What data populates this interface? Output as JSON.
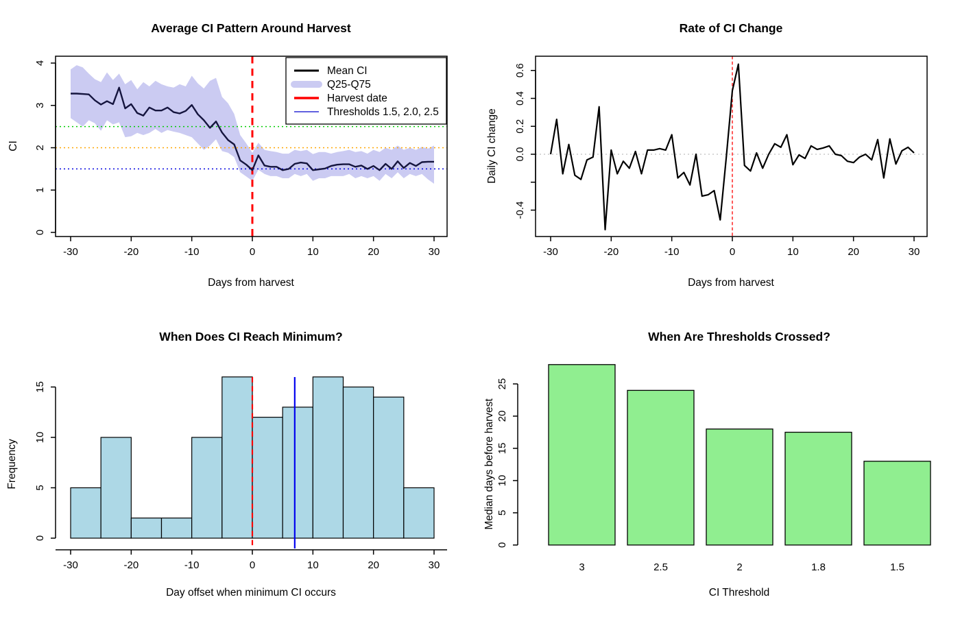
{
  "figure": {
    "background": "#FFFFFF",
    "rows": 2,
    "cols": 2
  },
  "colors": {
    "mean_line": "#15153E",
    "band": "#CBCBF2",
    "harvest_red": "#FF0000",
    "threshold_green": "#00CC00",
    "threshold_orange": "#FFA500",
    "threshold_blue": "#0000E0",
    "zero_gray": "#BFBFBF",
    "hist_fill": "#ADD8E6",
    "bar_fill": "#90EE90",
    "black": "#000000",
    "legend_blue": "#0000CC",
    "min_marker_blue": "#0000EE"
  },
  "chart_data": [
    {
      "id": "avg-ci-pattern",
      "type": "line",
      "title": "Average CI Pattern Around Harvest",
      "xlabel": "Days from harvest",
      "ylabel": "CI",
      "xlim": [
        -30,
        30
      ],
      "ylim": [
        0,
        4
      ],
      "xticks": [
        -30,
        -20,
        -10,
        0,
        10,
        20,
        30
      ],
      "yticks": [
        0,
        1,
        2,
        3,
        4
      ],
      "grid": false,
      "boxed": true,
      "x": [
        -30,
        -29,
        -28,
        -27,
        -26,
        -25,
        -24,
        -23,
        -22,
        -21,
        -20,
        -19,
        -18,
        -17,
        -16,
        -15,
        -14,
        -13,
        -12,
        -11,
        -10,
        -9,
        -8,
        -7,
        -6,
        -5,
        -4,
        -3,
        -2,
        -1,
        0,
        1,
        2,
        3,
        4,
        5,
        6,
        7,
        8,
        9,
        10,
        11,
        12,
        13,
        14,
        15,
        16,
        17,
        18,
        19,
        20,
        21,
        22,
        23,
        24,
        25,
        26,
        27,
        28,
        29,
        30
      ],
      "series": [
        {
          "name": "Mean CI",
          "color": "#15153E",
          "width": 2.4,
          "values": [
            3.28,
            3.28,
            3.27,
            3.26,
            3.12,
            3.02,
            3.1,
            3.03,
            3.42,
            2.93,
            3.03,
            2.82,
            2.76,
            2.95,
            2.88,
            2.88,
            2.95,
            2.84,
            2.81,
            2.87,
            3.01,
            2.79,
            2.65,
            2.47,
            2.62,
            2.36,
            2.18,
            2.08,
            1.7,
            1.6,
            1.47,
            1.82,
            1.58,
            1.55,
            1.55,
            1.47,
            1.5,
            1.62,
            1.65,
            1.63,
            1.47,
            1.49,
            1.51,
            1.57,
            1.6,
            1.61,
            1.61,
            1.55,
            1.58,
            1.5,
            1.57,
            1.47,
            1.62,
            1.5,
            1.68,
            1.52,
            1.64,
            1.57,
            1.66,
            1.67,
            1.67
          ]
        }
      ],
      "band": {
        "name": "Q25-Q75",
        "color": "#CBCBF2",
        "upper": [
          3.85,
          3.95,
          3.9,
          3.75,
          3.62,
          3.55,
          3.78,
          3.6,
          3.75,
          3.5,
          3.6,
          3.38,
          3.55,
          3.45,
          3.58,
          3.5,
          3.45,
          3.42,
          3.5,
          3.45,
          3.7,
          3.52,
          3.4,
          3.58,
          3.65,
          3.2,
          3.05,
          2.8,
          2.3,
          2.1,
          1.88,
          2.12,
          1.95,
          1.92,
          1.9,
          1.86,
          1.86,
          1.95,
          1.92,
          1.95,
          1.85,
          1.9,
          1.9,
          1.86,
          1.9,
          1.92,
          1.95,
          1.9,
          1.92,
          1.86,
          1.95,
          1.9,
          2.0,
          1.95,
          2.05,
          1.95,
          2.0,
          1.95,
          2.02,
          1.98,
          2.05
        ],
        "lower": [
          2.7,
          2.6,
          2.5,
          2.65,
          2.58,
          2.4,
          2.65,
          2.55,
          2.6,
          2.25,
          2.27,
          2.35,
          2.3,
          2.35,
          2.44,
          2.35,
          2.42,
          2.38,
          2.35,
          2.3,
          2.25,
          2.1,
          1.95,
          2.05,
          2.2,
          1.92,
          1.88,
          1.78,
          1.42,
          1.32,
          1.22,
          1.48,
          1.38,
          1.33,
          1.33,
          1.28,
          1.28,
          1.38,
          1.33,
          1.38,
          1.22,
          1.28,
          1.28,
          1.33,
          1.33,
          1.33,
          1.38,
          1.28,
          1.33,
          1.28,
          1.33,
          1.22,
          1.38,
          1.28,
          1.42,
          1.28,
          1.38,
          1.33,
          1.38,
          1.25,
          1.15
        ]
      },
      "vlines": [
        {
          "x": 0,
          "color": "#FF0000",
          "style": "dashed",
          "width": 3,
          "label": "Harvest date"
        }
      ],
      "hlines": [
        {
          "y": 2.5,
          "color": "#00CC00",
          "style": "dotted",
          "width": 1.5,
          "label": "Threshold 2.5"
        },
        {
          "y": 2.0,
          "color": "#FFA500",
          "style": "dotted",
          "width": 1.5,
          "label": "Threshold 2.0"
        },
        {
          "y": 1.5,
          "color": "#0000E0",
          "style": "dotted",
          "width": 1.5,
          "label": "Threshold 1.5"
        }
      ],
      "legend": {
        "position": "topright",
        "entries": [
          {
            "label": "Mean CI",
            "color": "#000000",
            "lw": 3
          },
          {
            "label": "Q25-Q75",
            "color": "#CBCBF2",
            "lw": 10
          },
          {
            "label": "Harvest date",
            "color": "#FF0000",
            "lw": 3.5
          },
          {
            "label": "Thresholds 1.5, 2.0, 2.5",
            "color": "#0000CC",
            "lw": 1.2
          }
        ]
      }
    },
    {
      "id": "rate-of-ci-change",
      "type": "line",
      "title": "Rate of CI Change",
      "xlabel": "Days from harvest",
      "ylabel": "Daily CI change",
      "xlim": [
        -30,
        30
      ],
      "ylim": [
        -0.57,
        0.66
      ],
      "xticks": [
        -30,
        -20,
        -10,
        0,
        10,
        20,
        30
      ],
      "yticks": [
        {
          "v": 0.6,
          "label": "0.6"
        },
        {
          "v": 0.4,
          "label": "0.4"
        },
        {
          "v": 0.2,
          "label": "0.2"
        },
        {
          "v": 0.0,
          "label": "0.0"
        },
        {
          "v": -0.2,
          "label": ""
        },
        {
          "v": -0.4,
          "label": "-0.4"
        }
      ],
      "grid": false,
      "boxed": true,
      "x": [
        -30,
        -29,
        -28,
        -27,
        -26,
        -25,
        -24,
        -23,
        -22,
        -21,
        -20,
        -19,
        -18,
        -17,
        -16,
        -15,
        -14,
        -13,
        -12,
        -11,
        -10,
        -9,
        -8,
        -7,
        -6,
        -5,
        -4,
        -3,
        -2,
        -1,
        0,
        1,
        2,
        3,
        4,
        5,
        6,
        7,
        8,
        9,
        10,
        11,
        12,
        13,
        14,
        15,
        16,
        17,
        18,
        19,
        20,
        21,
        22,
        23,
        24,
        25,
        26,
        27,
        28,
        29,
        30
      ],
      "series": [
        {
          "name": "Daily CI change",
          "color": "#000000",
          "width": 2.2,
          "values": [
            0.0,
            0.25,
            -0.14,
            0.07,
            -0.15,
            -0.18,
            -0.04,
            -0.02,
            0.34,
            -0.54,
            0.03,
            -0.14,
            -0.05,
            -0.1,
            0.02,
            -0.14,
            0.03,
            0.03,
            0.04,
            0.03,
            0.14,
            -0.17,
            -0.13,
            -0.22,
            0.0,
            -0.3,
            -0.29,
            -0.26,
            -0.47,
            -0.02,
            0.455,
            0.645,
            -0.08,
            -0.12,
            0.01,
            -0.1,
            0.0,
            0.075,
            0.05,
            0.14,
            -0.075,
            -0.005,
            -0.03,
            0.06,
            0.035,
            0.045,
            0.06,
            0.0,
            -0.01,
            -0.05,
            -0.06,
            -0.02,
            0.0,
            -0.04,
            0.105,
            -0.17,
            0.11,
            -0.07,
            0.025,
            0.05,
            0.01
          ]
        }
      ],
      "vlines": [
        {
          "x": 0,
          "color": "#FF0000",
          "style": "dashed",
          "width": 1.3,
          "label": "Harvest date"
        }
      ],
      "hlines": [
        {
          "y": 0,
          "color": "#BFBFBF",
          "style": "dotted",
          "width": 1.3,
          "label": "Zero change"
        }
      ]
    },
    {
      "id": "min-ci-histogram",
      "type": "histogram",
      "title": "When Does CI Reach Minimum?",
      "xlabel": "Day offset when minimum CI occurs",
      "ylabel": "Frequency",
      "xlim": [
        -30,
        30
      ],
      "ylim": [
        0,
        16
      ],
      "xticks": [
        -30,
        -20,
        -10,
        0,
        10,
        20,
        30
      ],
      "yticks": [
        0,
        5,
        10,
        15
      ],
      "bin_start": -30,
      "bin_width": 5,
      "counts": [
        5,
        10,
        2,
        2,
        10,
        16,
        12,
        13,
        16,
        15,
        14,
        5
      ],
      "fill": "#ADD8E6",
      "border": "#000000",
      "vlines": [
        {
          "x": 0,
          "color": "#FF0000",
          "style": "dashed",
          "width": 2.2,
          "label": "Harvest date"
        },
        {
          "x": 7,
          "color": "#0000EE",
          "style": "solid",
          "width": 2.2,
          "label": "Median minimum day"
        }
      ]
    },
    {
      "id": "threshold-crossing",
      "type": "bar",
      "title": "When Are Thresholds Crossed?",
      "xlabel": "CI Threshold",
      "ylabel": "Median days before harvest",
      "categories": [
        "3",
        "2.5",
        "2",
        "1.8",
        "1.5"
      ],
      "values": [
        28,
        24,
        18,
        17.5,
        13
      ],
      "ylim": [
        0,
        28
      ],
      "yticks": [
        0,
        5,
        10,
        15,
        20,
        25
      ],
      "fill": "#90EE90",
      "border": "#000000"
    }
  ]
}
